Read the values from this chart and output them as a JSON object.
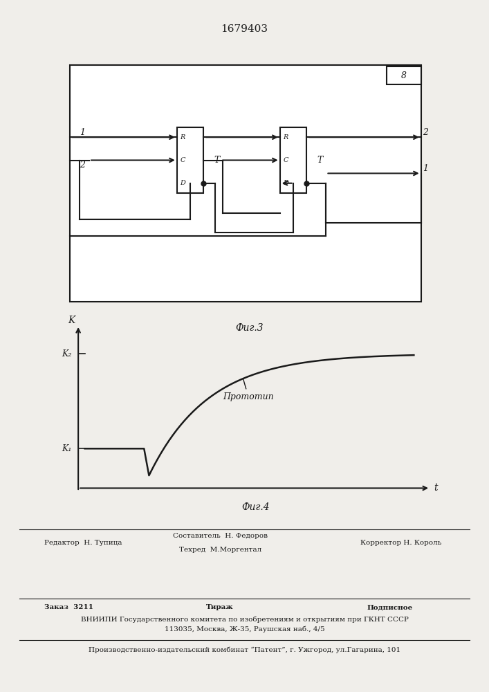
{
  "patent_number": "1679403",
  "fig3_caption": "Фиг.3",
  "fig4_caption": "Фиг.4",
  "fig4_xlabel": "t",
  "fig4_ylabel": "K",
  "fig4_k1_label": "K₁",
  "fig4_k2_label": "K₂",
  "fig4_annotation": "Прототип",
  "footer_line1_left": "Редактор  Н. Тупица",
  "footer_line1_center_top": "Составитель  Н. Федоров",
  "footer_line1_center_bot": "Техред  М.Моргентал",
  "footer_line1_right": "Корректор Н. Король",
  "footer_line2_left": "Заказ  3211",
  "footer_line2_center": "Тираж",
  "footer_line2_right": "Подписное",
  "footer_line3": "ВНИИПИ Государственного комитета по изобретениям и открытиям при ГКНТ СССР",
  "footer_line4": "113035, Москва, Ж-35, Раушская наб., 4/5",
  "footer_line5": "Производственно-издательский комбинат “Патент”, г. Ужгород, ул.Гагарина, 101",
  "bg_color": "#f0eeea",
  "line_color": "#1a1a1a",
  "text_color": "#1a1a1a"
}
